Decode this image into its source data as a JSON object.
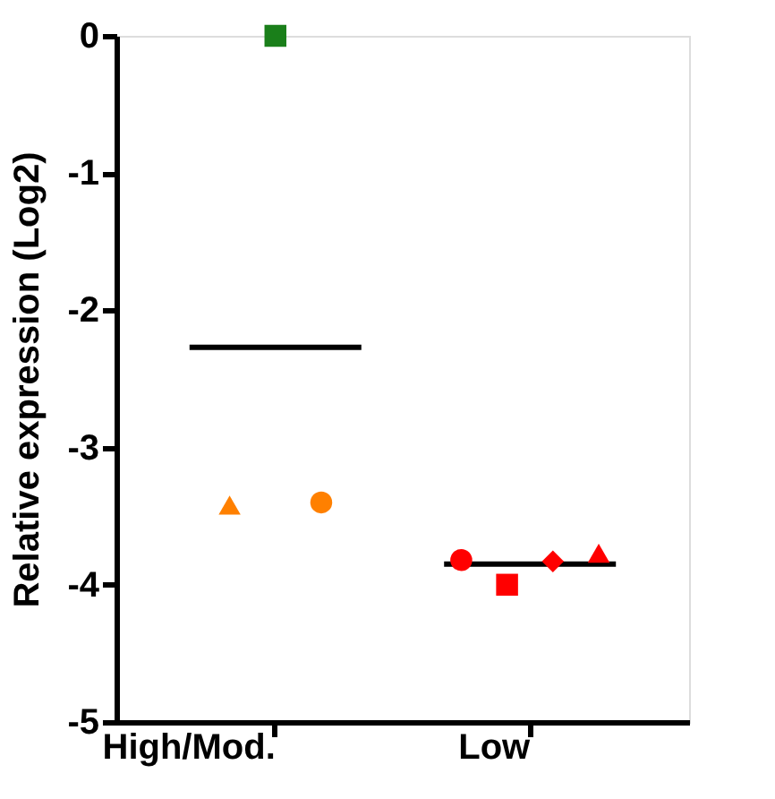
{
  "chart_data": {
    "type": "scatter",
    "ylabel": "Relative expression (Log2)",
    "categories": [
      "High/Mod.",
      "Low"
    ],
    "ylim": [
      -5,
      0
    ],
    "yticks": [
      0,
      -1,
      -2,
      -3,
      -4,
      -5
    ],
    "grid": false,
    "series": [
      {
        "color": "#ff8000",
        "marker": "triangle",
        "x": [
          "High/Mod."
        ],
        "values": [
          -3.42
        ]
      },
      {
        "color": "#1a7f1a",
        "marker": "square",
        "x": [
          "High/Mod."
        ],
        "values": [
          0
        ]
      },
      {
        "color": "#ff8000",
        "marker": "circle",
        "x": [
          "High/Mod."
        ],
        "values": [
          -3.4
        ]
      },
      {
        "color": "#ff0000",
        "marker": "circle",
        "x": [
          "Low"
        ],
        "values": [
          -3.82
        ]
      },
      {
        "color": "#ff0000",
        "marker": "square",
        "x": [
          "Low"
        ],
        "values": [
          -4.0
        ]
      },
      {
        "color": "#ff0000",
        "marker": "diamond",
        "x": [
          "Low"
        ],
        "values": [
          -3.83
        ]
      },
      {
        "color": "#ff0000",
        "marker": "triangle",
        "x": [
          "Low"
        ],
        "values": [
          -3.77
        ]
      }
    ],
    "ref_lines": [
      {
        "axis": "y",
        "value": -2.27,
        "color": "#000000"
      },
      {
        "axis": "y",
        "value": -3.85,
        "color": "#000000"
      }
    ]
  }
}
